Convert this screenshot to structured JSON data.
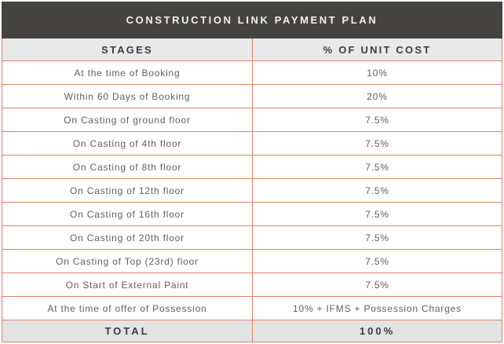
{
  "page": {
    "title": "CONSTRUCTION LINK PAYMENT PLAN"
  },
  "table": {
    "columns": [
      "STAGES",
      "% OF UNIT COST"
    ],
    "rows": [
      {
        "stage": "At the time of Booking",
        "value": "10%"
      },
      {
        "stage": "Within 60 Days of Booking",
        "value": "20%"
      },
      {
        "stage": "On Casting of ground floor",
        "value": "7.5%"
      },
      {
        "stage": "On Casting of 4th floor",
        "value": "7.5%"
      },
      {
        "stage": "On Casting of 8th floor",
        "value": "7.5%"
      },
      {
        "stage": "On Casting of 12th floor",
        "value": "7.5%"
      },
      {
        "stage": "On Casting of 16th floor",
        "value": "7.5%"
      },
      {
        "stage": "On Casting of 20th floor",
        "value": "7.5%"
      },
      {
        "stage": "On Casting of Top (23rd) floor",
        "value": "7.5%"
      },
      {
        "stage": "On Start of External Paint",
        "value": "7.5%"
      },
      {
        "stage": "At the time of offer of Possession",
        "value": "10% + IFMS + Possession Charges"
      }
    ],
    "total": {
      "label": "TOTAL",
      "value": "100%"
    }
  },
  "colors": {
    "title_bar_bg": "#454342",
    "title_text": "#f2f1ef",
    "border": "#dd8168",
    "header_row_bg": "#e8eaea",
    "total_row_bg": "#e2e4e4",
    "header_text": "#3b3c3e",
    "cell_text": "#5f6062"
  }
}
